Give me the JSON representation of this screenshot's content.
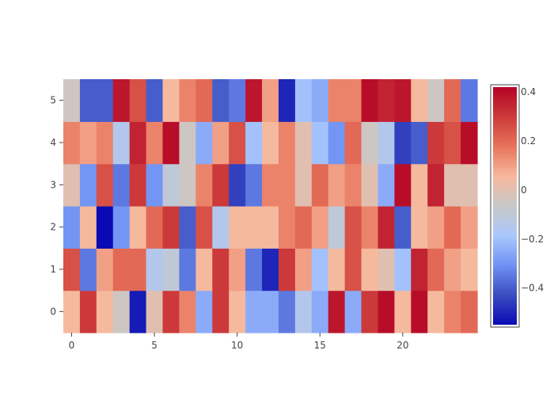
{
  "chart_data": {
    "type": "heatmap",
    "x": [
      0,
      1,
      2,
      3,
      4,
      5,
      6,
      7,
      8,
      9,
      10,
      11,
      12,
      13,
      14,
      15,
      16,
      17,
      18,
      19,
      20,
      21,
      22,
      23,
      24
    ],
    "y": [
      0,
      1,
      2,
      3,
      4,
      5
    ],
    "z": [
      [
        0.05,
        0.3,
        0.05,
        -0.05,
        -0.52,
        0.0,
        0.3,
        0.15,
        -0.25,
        0.3,
        0.05,
        -0.25,
        -0.25,
        -0.35,
        -0.15,
        -0.25,
        0.38,
        -0.25,
        0.3,
        0.4,
        0.05,
        0.4,
        0.05,
        0.15,
        0.2
      ],
      [
        0.25,
        -0.35,
        0.1,
        0.2,
        0.2,
        -0.15,
        -0.1,
        -0.35,
        0.05,
        0.3,
        0.1,
        -0.35,
        -0.5,
        0.3,
        0.1,
        -0.2,
        0.05,
        0.25,
        0.05,
        0.0,
        -0.2,
        0.35,
        0.2,
        0.1,
        0.05
      ],
      [
        -0.3,
        0.05,
        -0.55,
        -0.3,
        0.05,
        0.2,
        0.3,
        -0.4,
        0.25,
        -0.15,
        0.05,
        0.05,
        0.05,
        0.15,
        0.2,
        0.1,
        -0.1,
        0.25,
        0.15,
        0.35,
        -0.4,
        0.05,
        0.1,
        0.2,
        0.1
      ],
      [
        0.0,
        -0.3,
        0.25,
        -0.35,
        0.3,
        -0.3,
        -0.1,
        -0.05,
        0.15,
        0.3,
        -0.45,
        -0.35,
        0.15,
        0.15,
        0.0,
        0.2,
        0.1,
        0.15,
        0.0,
        -0.25,
        0.4,
        0.05,
        0.35,
        0.0,
        0.0
      ],
      [
        0.15,
        0.1,
        0.15,
        -0.15,
        0.35,
        0.15,
        0.4,
        -0.05,
        -0.25,
        0.1,
        0.25,
        -0.2,
        0.05,
        0.15,
        0.0,
        -0.2,
        -0.3,
        0.2,
        -0.05,
        -0.15,
        -0.45,
        -0.4,
        0.3,
        0.25,
        0.4
      ],
      [
        -0.05,
        -0.4,
        -0.4,
        0.38,
        0.25,
        -0.4,
        0.05,
        0.15,
        0.2,
        -0.4,
        -0.35,
        0.38,
        0.1,
        -0.5,
        -0.2,
        -0.25,
        0.15,
        0.15,
        0.4,
        0.35,
        0.38,
        0.05,
        -0.05,
        0.2,
        -0.35
      ]
    ],
    "zmin": -0.55,
    "zmax": 0.42,
    "colorscale": [
      "#0a0ab4",
      "#3b4cc0",
      "#6f92f3",
      "#aac7fd",
      "#c8c8c8",
      "#f7b89c",
      "#e7745b",
      "#cc3a3a",
      "#b40426"
    ],
    "xaxis": {
      "ticks": [
        0,
        5,
        10,
        15,
        20
      ],
      "range": [
        -0.5,
        24.5
      ]
    },
    "yaxis": {
      "ticks": [
        0,
        1,
        2,
        3,
        4,
        5
      ],
      "range": [
        -0.5,
        5.5
      ]
    },
    "colorbar": {
      "ticks": [
        0.4,
        0.2,
        0,
        -0.2,
        -0.4
      ],
      "tick_labels": [
        "0.4",
        "0.2",
        "0",
        "−0.2",
        "−0.4"
      ]
    },
    "title": "",
    "xlabel": "",
    "ylabel": ""
  }
}
